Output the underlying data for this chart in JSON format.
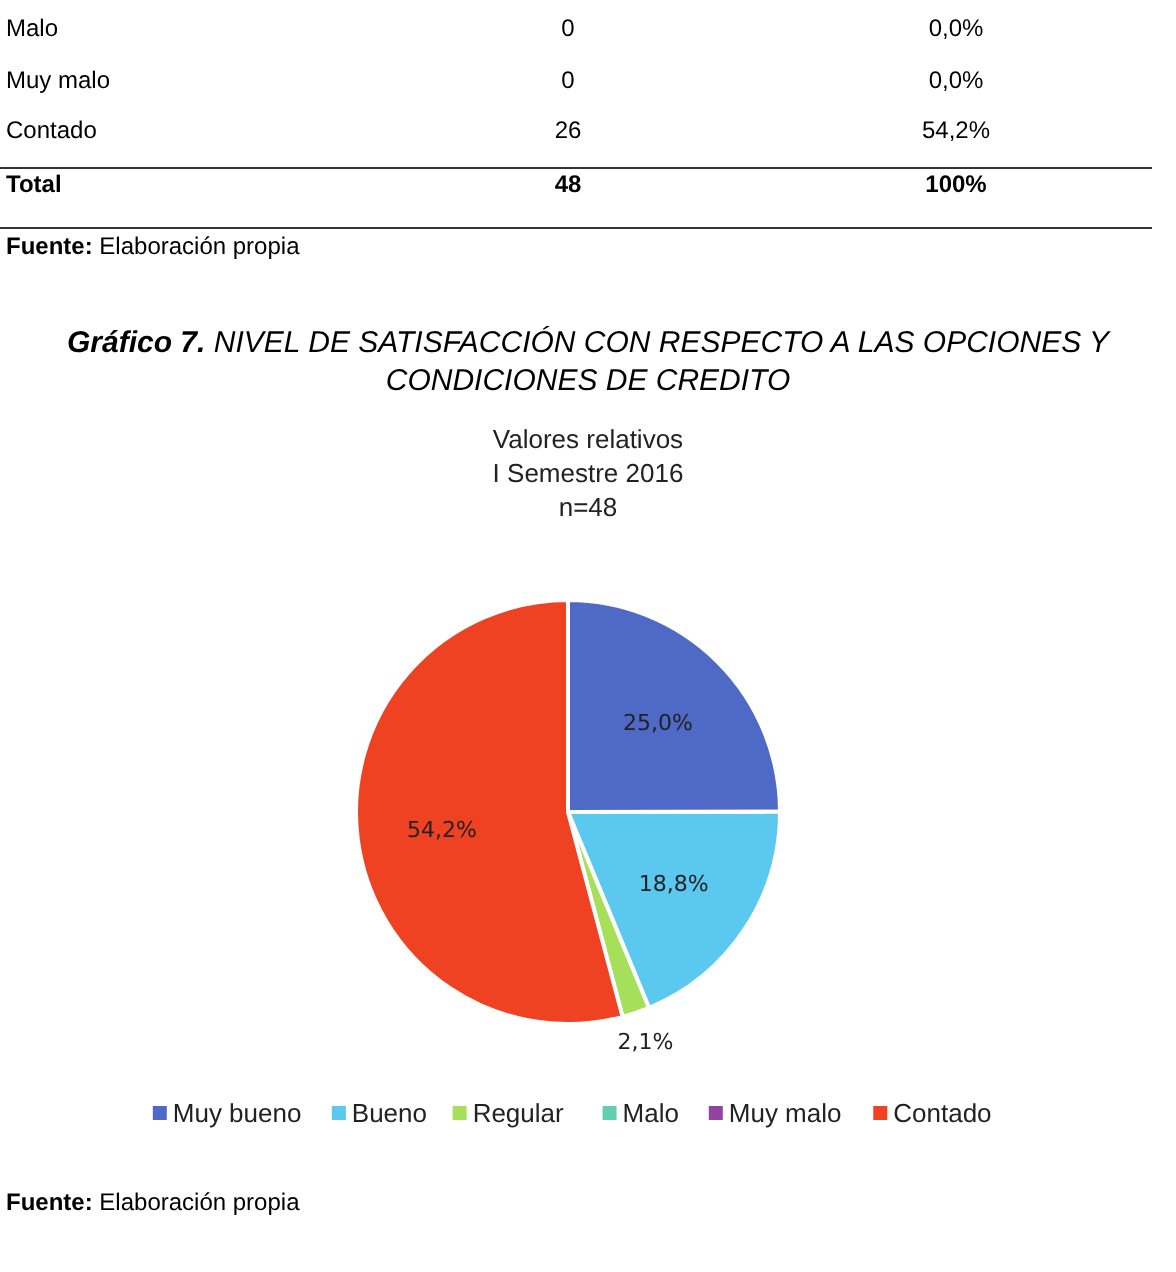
{
  "chart_data": {
    "type": "pie",
    "title": "Gráfico 7.  NIVEL DE SATISFACCIÓN CON RESPECTO A LAS OPCIONES Y CONDICIONES DE CREDITO",
    "subtitle": "Valores relativos\nI Semestre 2016\nn=48",
    "categories": [
      "Muy bueno",
      "Bueno",
      "Regular",
      "Malo",
      "Muy malo",
      "Contado"
    ],
    "values": [
      25.0,
      18.8,
      2.1,
      0,
      0,
      54.2
    ],
    "colors": [
      "#4f6ac6",
      "#5bc8f0",
      "#a6e05a",
      "#5fcfb0",
      "#8e44a0",
      "#ef4223"
    ],
    "value_labels": [
      "25,0%",
      "18,8%",
      "2,1%",
      null,
      null,
      "54,2%"
    ],
    "legend": "bottom",
    "annotations": [
      "Malo",
      "0",
      "0,0%",
      "Muy malo",
      "0",
      "0,0%",
      "Contado",
      "26",
      "54,2%",
      "Total",
      "48",
      "100%",
      "Fuente: Elaboración propia",
      "Fuente: Elaboración propia"
    ]
  }
}
